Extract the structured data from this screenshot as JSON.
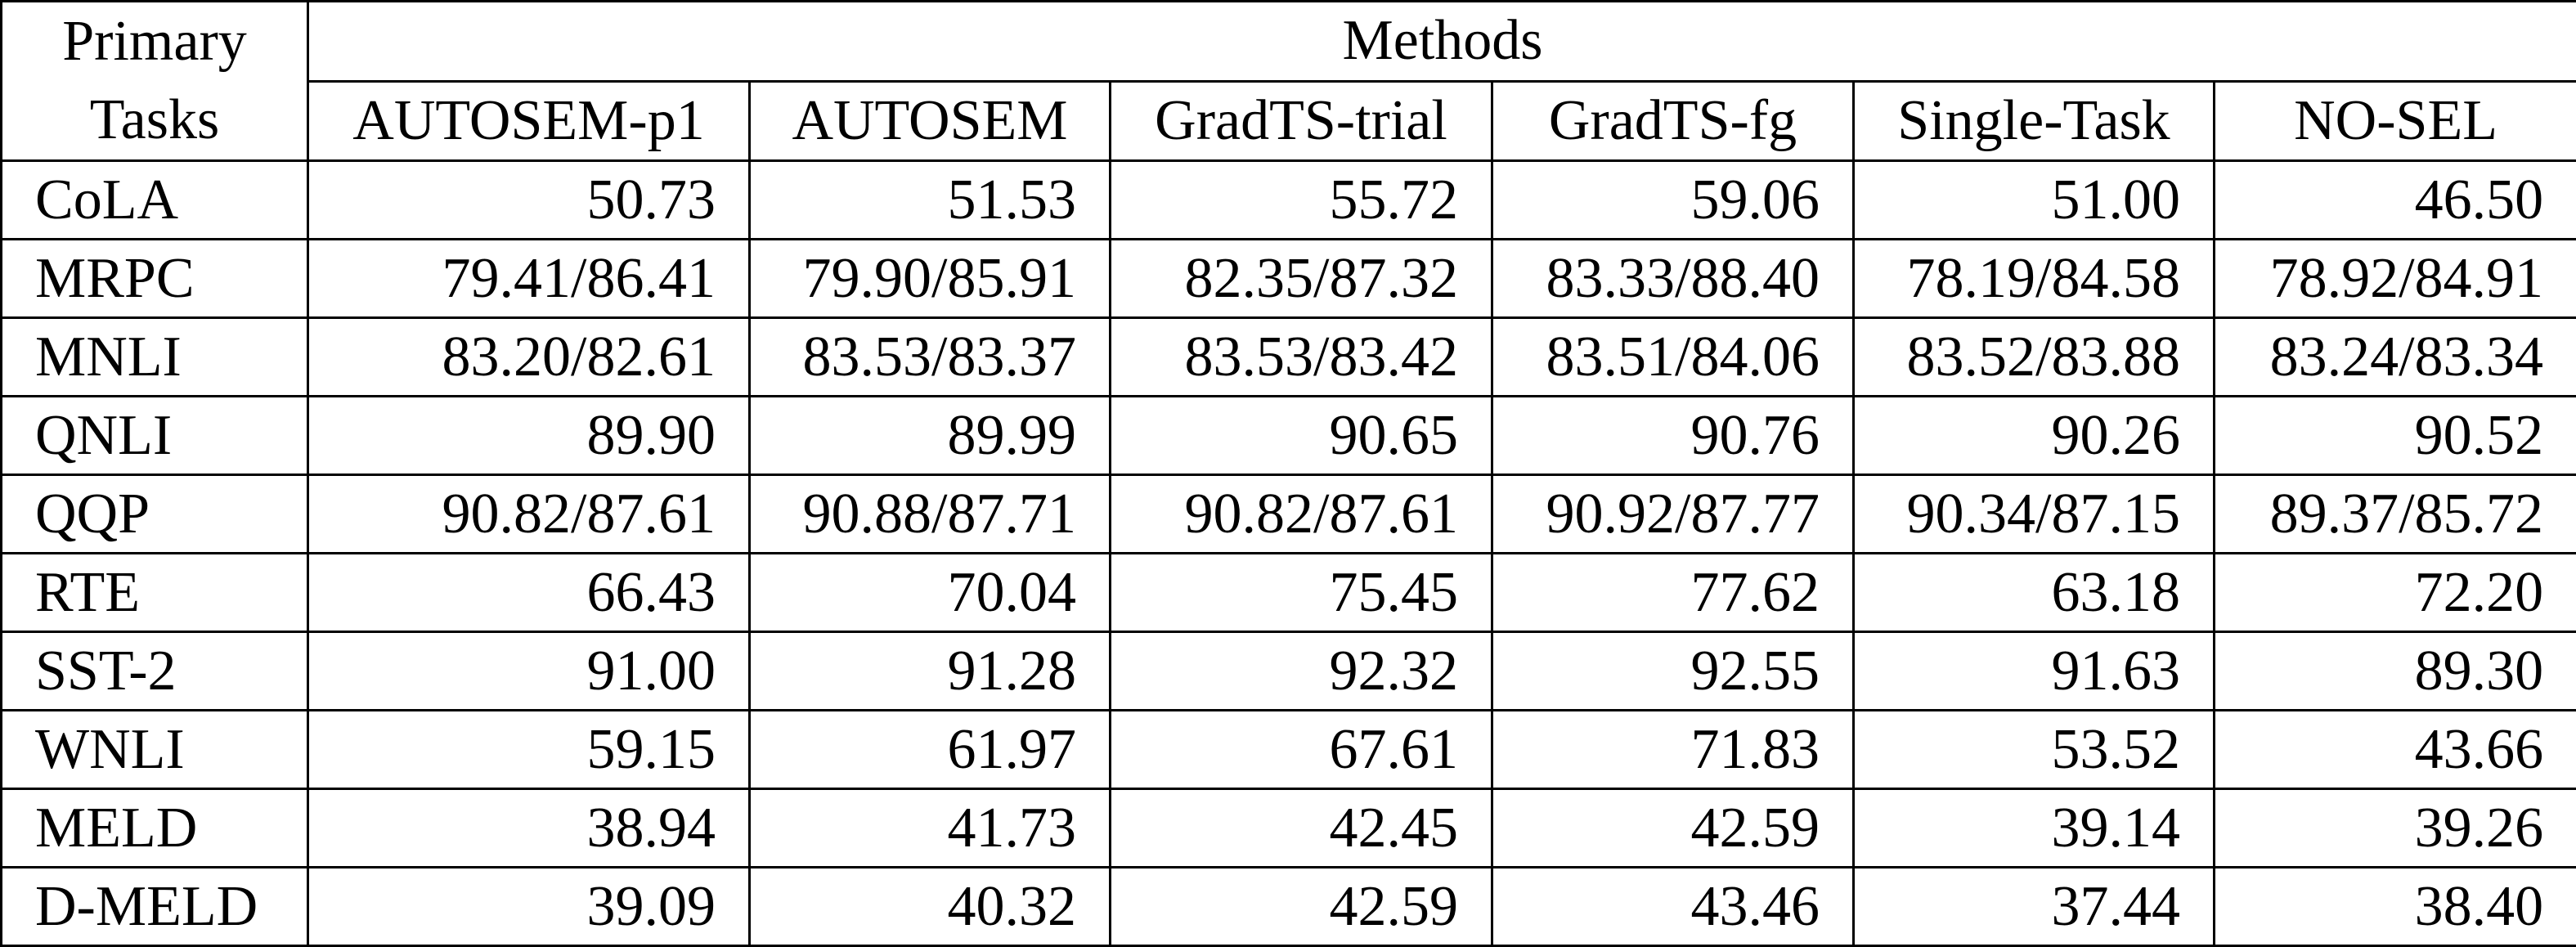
{
  "table": {
    "corner_line1": "Primary",
    "corner_line2": "Tasks",
    "group_header": "Methods",
    "columns": [
      "AUTOSEM-p1",
      "AUTOSEM",
      "GradTS-trial",
      "GradTS-fg",
      "Single-Task",
      "NO-SEL"
    ],
    "best_column_index": 3,
    "rows": [
      {
        "task": "CoLA",
        "values": [
          "50.73",
          "51.53",
          "55.72",
          "59.06",
          "51.00",
          "46.50"
        ]
      },
      {
        "task": "MRPC",
        "values": [
          "79.41/86.41",
          "79.90/85.91",
          "82.35/87.32",
          "83.33/88.40",
          "78.19/84.58",
          "78.92/84.91"
        ]
      },
      {
        "task": "MNLI",
        "values": [
          "83.20/82.61",
          "83.53/83.37",
          "83.53/83.42",
          "83.51/84.06",
          "83.52/83.88",
          "83.24/83.34"
        ]
      },
      {
        "task": "QNLI",
        "values": [
          "89.90",
          "89.99",
          "90.65",
          "90.76",
          "90.26",
          "90.52"
        ]
      },
      {
        "task": "QQP",
        "values": [
          "90.82/87.61",
          "90.88/87.71",
          "90.82/87.61",
          "90.92/87.77",
          "90.34/87.15",
          "89.37/85.72"
        ]
      },
      {
        "task": "RTE",
        "values": [
          "66.43",
          "70.04",
          "75.45",
          "77.62",
          "63.18",
          "72.20"
        ]
      },
      {
        "task": "SST-2",
        "values": [
          "91.00",
          "91.28",
          "92.32",
          "92.55",
          "91.63",
          "89.30"
        ]
      },
      {
        "task": "WNLI",
        "values": [
          "59.15",
          "61.97",
          "67.61",
          "71.83",
          "53.52",
          "43.66"
        ]
      },
      {
        "task": "MELD",
        "values": [
          "38.94",
          "41.73",
          "42.45",
          "42.59",
          "39.14",
          "39.26"
        ]
      },
      {
        "task": "D-MELD",
        "values": [
          "39.09",
          "40.32",
          "42.59",
          "43.46",
          "37.44",
          "38.40"
        ]
      }
    ]
  }
}
